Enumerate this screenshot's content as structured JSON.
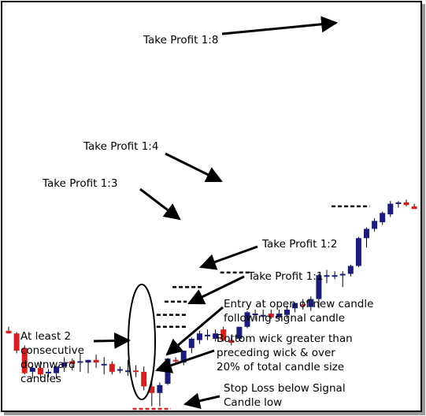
{
  "chart_data": {
    "type": "candlestick",
    "colors": {
      "bull": "#1c1c7a",
      "bear": "#d42020",
      "wick": "#000000",
      "level": "#000000",
      "stop": "#d42020"
    },
    "candles": [
      {
        "o": -1.3,
        "h": -1.0,
        "l": -1.5,
        "c": -1.5
      },
      {
        "o": -1.5,
        "h": -1.4,
        "l": -3.0,
        "c": -2.8
      },
      {
        "o": -2.6,
        "h": -2.4,
        "l": -4.6,
        "c": -4.5
      },
      {
        "o": -4.4,
        "h": -3.9,
        "l": -4.9,
        "c": -4.1
      },
      {
        "o": -4.1,
        "h": -3.6,
        "l": -5.0,
        "c": -4.6
      },
      {
        "o": -4.5,
        "h": -4.2,
        "l": -4.8,
        "c": -4.4
      },
      {
        "o": -4.5,
        "h": -4.0,
        "l": -4.9,
        "c": -4.0
      },
      {
        "o": -4.0,
        "h": -3.3,
        "l": -4.4,
        "c": -3.7
      },
      {
        "o": -3.6,
        "h": -3.4,
        "l": -4.3,
        "c": -3.8
      },
      {
        "o": -3.7,
        "h": -3.0,
        "l": -4.4,
        "c": -3.6
      },
      {
        "o": -3.7,
        "h": -3.5,
        "l": -4.5,
        "c": -3.5
      },
      {
        "o": -3.5,
        "h": -3.1,
        "l": -4.1,
        "c": -3.7
      },
      {
        "o": -3.9,
        "h": -3.3,
        "l": -4.6,
        "c": -3.8
      },
      {
        "o": -3.8,
        "h": -3.6,
        "l": -4.6,
        "c": -4.4
      },
      {
        "o": -4.3,
        "h": -4.0,
        "l": -4.5,
        "c": -4.2
      },
      {
        "o": -4.3,
        "h": -3.5,
        "l": -4.7,
        "c": -4.3
      },
      {
        "o": -4.3,
        "h": -3.9,
        "l": -4.8,
        "c": -4.4
      },
      {
        "o": -4.4,
        "h": -4.0,
        "l": -5.8,
        "c": -5.5
      },
      {
        "o": -5.5,
        "h": -5.0,
        "l": -7.0,
        "c": -6.0
      },
      {
        "o": -6.0,
        "h": -5.2,
        "l": -7.0,
        "c": -5.4
      },
      {
        "o": -5.3,
        "h": -3.5,
        "l": -5.4,
        "c": -3.4
      },
      {
        "o": -3.5,
        "h": -3.3,
        "l": -3.8,
        "c": -3.6
      },
      {
        "o": -3.7,
        "h": -2.8,
        "l": -3.9,
        "c": -2.8
      },
      {
        "o": -2.6,
        "h": -1.8,
        "l": -3.0,
        "c": -1.9
      },
      {
        "o": -2.0,
        "h": -1.3,
        "l": -2.3,
        "c": -1.5
      },
      {
        "o": -1.7,
        "h": -1.2,
        "l": -2.0,
        "c": -1.6
      },
      {
        "o": -1.9,
        "h": -1.2,
        "l": -2.1,
        "c": -1.5
      },
      {
        "o": -1.2,
        "h": -1.0,
        "l": -2.1,
        "c": -2.0
      },
      {
        "o": -2.0,
        "h": -1.8,
        "l": -2.4,
        "c": -2.2
      },
      {
        "o": -1.9,
        "h": -1.0,
        "l": -2.1,
        "c": -1.0
      },
      {
        "o": -1.0,
        "h": 0.2,
        "l": -1.1,
        "c": 0.1
      },
      {
        "o": 0.0,
        "h": 0.3,
        "l": -0.5,
        "c": 0.0
      },
      {
        "o": -0.1,
        "h": 0.3,
        "l": -0.3,
        "c": -0.1
      },
      {
        "o": 0.0,
        "h": 0.3,
        "l": -0.4,
        "c": -0.3
      },
      {
        "o": -0.3,
        "h": 0.3,
        "l": -0.5,
        "c": 0.0
      },
      {
        "o": -0.1,
        "h": 0.6,
        "l": -0.4,
        "c": 0.3
      },
      {
        "o": 0.4,
        "h": 0.8,
        "l": 0.1,
        "c": 0.8
      },
      {
        "o": 0.7,
        "h": 1.1,
        "l": 0.3,
        "c": 0.6
      },
      {
        "o": 0.5,
        "h": 1.3,
        "l": 0.2,
        "c": 1.1
      },
      {
        "o": 1.1,
        "h": 3.0,
        "l": 0.4,
        "c": 2.9
      },
      {
        "o": 2.9,
        "h": 3.3,
        "l": 2.3,
        "c": 2.9
      },
      {
        "o": 2.9,
        "h": 3.2,
        "l": 2.6,
        "c": 2.9
      },
      {
        "o": 2.9,
        "h": 3.2,
        "l": 2.0,
        "c": 3.0
      },
      {
        "o": 3.0,
        "h": 3.7,
        "l": 2.8,
        "c": 3.6
      },
      {
        "o": 3.6,
        "h": 5.8,
        "l": 3.5,
        "c": 5.7
      },
      {
        "o": 5.7,
        "h": 6.5,
        "l": 5.0,
        "c": 6.4
      },
      {
        "o": 6.4,
        "h": 7.2,
        "l": 6.2,
        "c": 7.0
      },
      {
        "o": 6.9,
        "h": 7.7,
        "l": 6.7,
        "c": 7.6
      },
      {
        "o": 7.5,
        "h": 8.5,
        "l": 7.3,
        "c": 8.3
      },
      {
        "o": 8.3,
        "h": 8.5,
        "l": 8.0,
        "c": 8.4
      },
      {
        "o": 8.4,
        "h": 8.6,
        "l": 8.1,
        "c": 8.2
      },
      {
        "o": 8.1,
        "h": 8.3,
        "l": 7.9,
        "c": 7.9
      }
    ],
    "signal_index": 19,
    "levels": [
      {
        "key": "tp8",
        "value": 8.1,
        "from": 41,
        "to": 45
      },
      {
        "key": "tp4",
        "value": 3.1,
        "from": 27,
        "to": 30
      },
      {
        "key": "tp3",
        "value": 2.0,
        "from": 21,
        "to": 24
      },
      {
        "key": "tp2",
        "value": 0.9,
        "from": 20,
        "to": 22
      },
      {
        "key": "tp1",
        "value": -0.1,
        "from": 19,
        "to": 22
      },
      {
        "key": "entry",
        "value": -1.0,
        "from": 19,
        "to": 22
      },
      {
        "key": "stop",
        "value": -7.2,
        "from": 16,
        "to": 20
      }
    ],
    "annotations": {
      "tp8": "Take Profit 1:8",
      "tp4": "Take Profit 1:4",
      "tp3": "Take Profit 1:3",
      "tp2": "Take Profit 1:2",
      "tp1": "Take Profit 1:1",
      "entry_1": "Entry at open of new candle",
      "entry_2": "following signal candle",
      "consec_1": "At least 2",
      "consec_2": "consecutive",
      "consec_3": "downward",
      "consec_4": "candles",
      "wick_1": "Bottom wick greater than",
      "wick_2": "preceding wick & over",
      "wick_3": "20% of total candle size",
      "stop_1": "Stop Loss below Signal",
      "stop_2": "Candle low"
    }
  }
}
